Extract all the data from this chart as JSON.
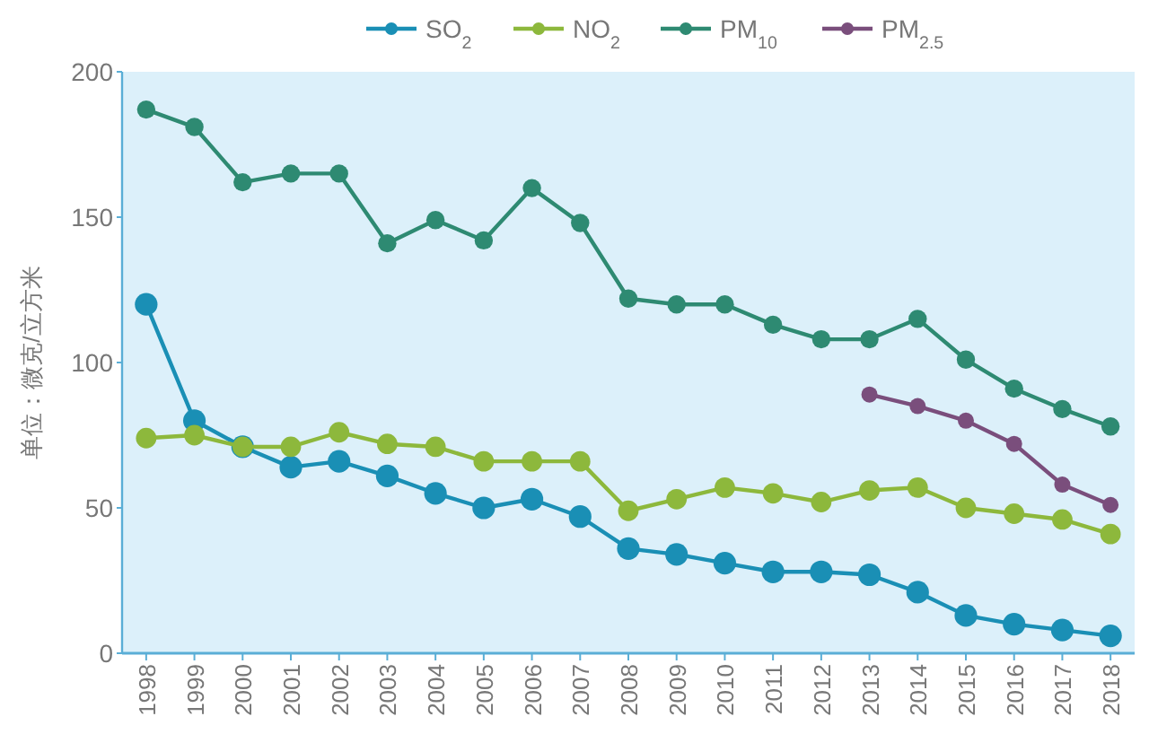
{
  "chart_data": {
    "type": "line",
    "ylabel": "单位：微克/立方米",
    "categories": [
      "1998",
      "1999",
      "2000",
      "2001",
      "2002",
      "2003",
      "2004",
      "2005",
      "2006",
      "2007",
      "2008",
      "2009",
      "2010",
      "2011",
      "2012",
      "2013",
      "2014",
      "2015",
      "2016",
      "2017",
      "2018"
    ],
    "series": [
      {
        "name": "SO$_{2}$",
        "color": "#1a8fb5",
        "values": [
          120,
          80,
          71,
          64,
          66,
          61,
          55,
          50,
          53,
          47,
          36,
          34,
          31,
          28,
          28,
          27,
          21,
          13,
          10,
          8,
          6
        ]
      },
      {
        "name": "NO$_{2}$",
        "color": "#8db83c",
        "values": [
          74,
          75,
          71,
          71,
          76,
          72,
          71,
          66,
          66,
          66,
          49,
          53,
          57,
          55,
          52,
          56,
          57,
          50,
          48,
          46,
          41
        ]
      },
      {
        "name": "PM$_{10}$",
        "color": "#2e8a72",
        "values": [
          187,
          181,
          162,
          165,
          165,
          141,
          149,
          142,
          160,
          148,
          122,
          120,
          120,
          113,
          108,
          108,
          115,
          101,
          91,
          84,
          78
        ]
      },
      {
        "name": "PM$_{2.5}$",
        "color": "#7a4e7c",
        "values": [
          null,
          null,
          null,
          null,
          null,
          null,
          null,
          null,
          null,
          null,
          null,
          null,
          null,
          null,
          null,
          89,
          85,
          80,
          72,
          58,
          51
        ]
      }
    ],
    "ylim": [
      0,
      200
    ],
    "yticks": [
      0,
      50,
      100,
      150,
      200
    ],
    "marker": "circle",
    "line_style": "solid",
    "legend": "top",
    "grid": false
  }
}
